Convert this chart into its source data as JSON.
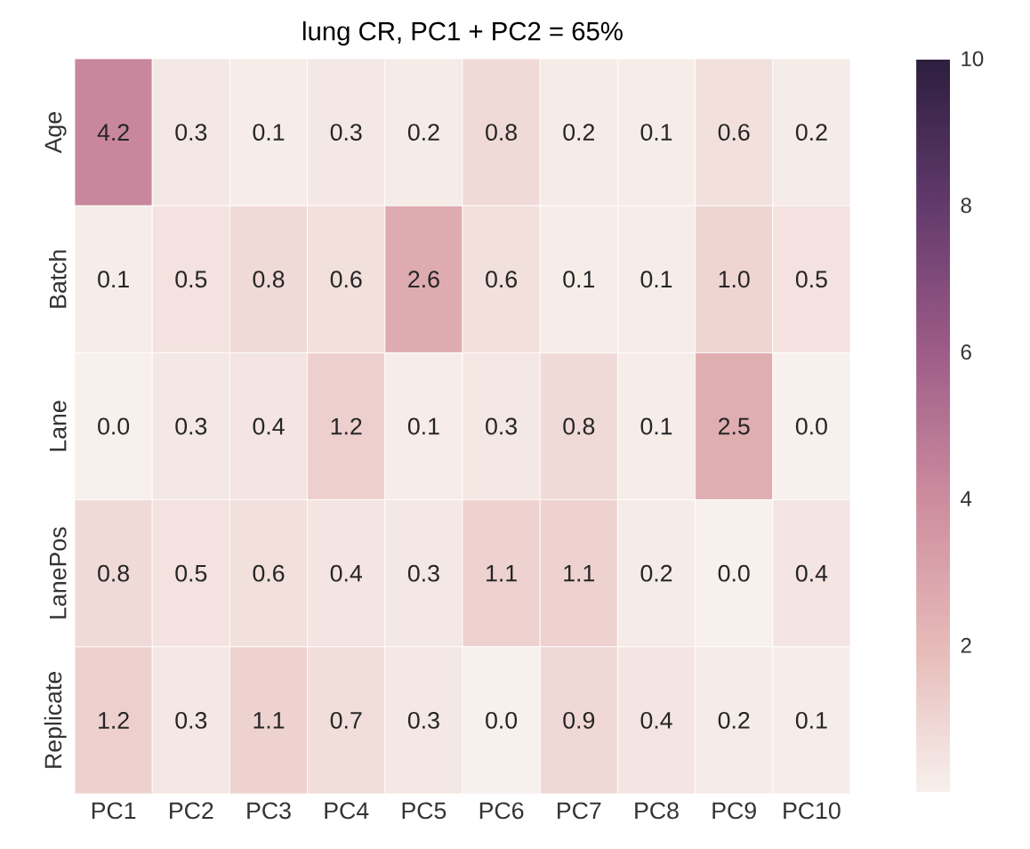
{
  "chart_data": {
    "type": "heatmap",
    "title": "lung CR, PC1 + PC2 = 65%",
    "categories": [
      "PC1",
      "PC2",
      "PC3",
      "PC4",
      "PC5",
      "PC6",
      "PC7",
      "PC8",
      "PC9",
      "PC10"
    ],
    "y_categories": [
      "Age",
      "Batch",
      "Lane",
      "LanePos",
      "Replicate"
    ],
    "cells": [
      [
        4.2,
        0.3,
        0.1,
        0.3,
        0.2,
        0.8,
        0.2,
        0.1,
        0.6,
        0.2
      ],
      [
        0.1,
        0.5,
        0.8,
        0.6,
        2.6,
        0.6,
        0.1,
        0.1,
        1.0,
        0.5
      ],
      [
        0.0,
        0.3,
        0.4,
        1.2,
        0.1,
        0.3,
        0.8,
        0.1,
        2.5,
        0.0
      ],
      [
        0.8,
        0.5,
        0.6,
        0.4,
        0.3,
        1.1,
        1.1,
        0.2,
        0.0,
        0.4
      ],
      [
        1.2,
        0.3,
        1.1,
        0.7,
        0.3,
        0.0,
        0.9,
        0.4,
        0.2,
        0.1
      ]
    ],
    "cell_labels": [
      [
        "4.2",
        "0.3",
        "0.1",
        "0.3",
        "0.2",
        "0.8",
        "0.2",
        "0.1",
        "0.6",
        "0.2"
      ],
      [
        "0.1",
        "0.5",
        "0.8",
        "0.6",
        "2.6",
        "0.6",
        "0.1",
        "0.1",
        "1.0",
        "0.5"
      ],
      [
        "0.0",
        "0.3",
        "0.4",
        "1.2",
        "0.1",
        "0.3",
        "0.8",
        "0.1",
        "2.5",
        "0.0"
      ],
      [
        "0.8",
        "0.5",
        "0.6",
        "0.4",
        "0.3",
        "1.1",
        "1.1",
        "0.2",
        "0.0",
        "0.4"
      ],
      [
        "1.2",
        "0.3",
        "1.1",
        "0.7",
        "0.3",
        "0.0",
        "0.9",
        "0.4",
        "0.2",
        "0.1"
      ]
    ],
    "clim": [
      0,
      10
    ],
    "cticks": [
      2,
      4,
      6,
      8,
      10
    ]
  }
}
